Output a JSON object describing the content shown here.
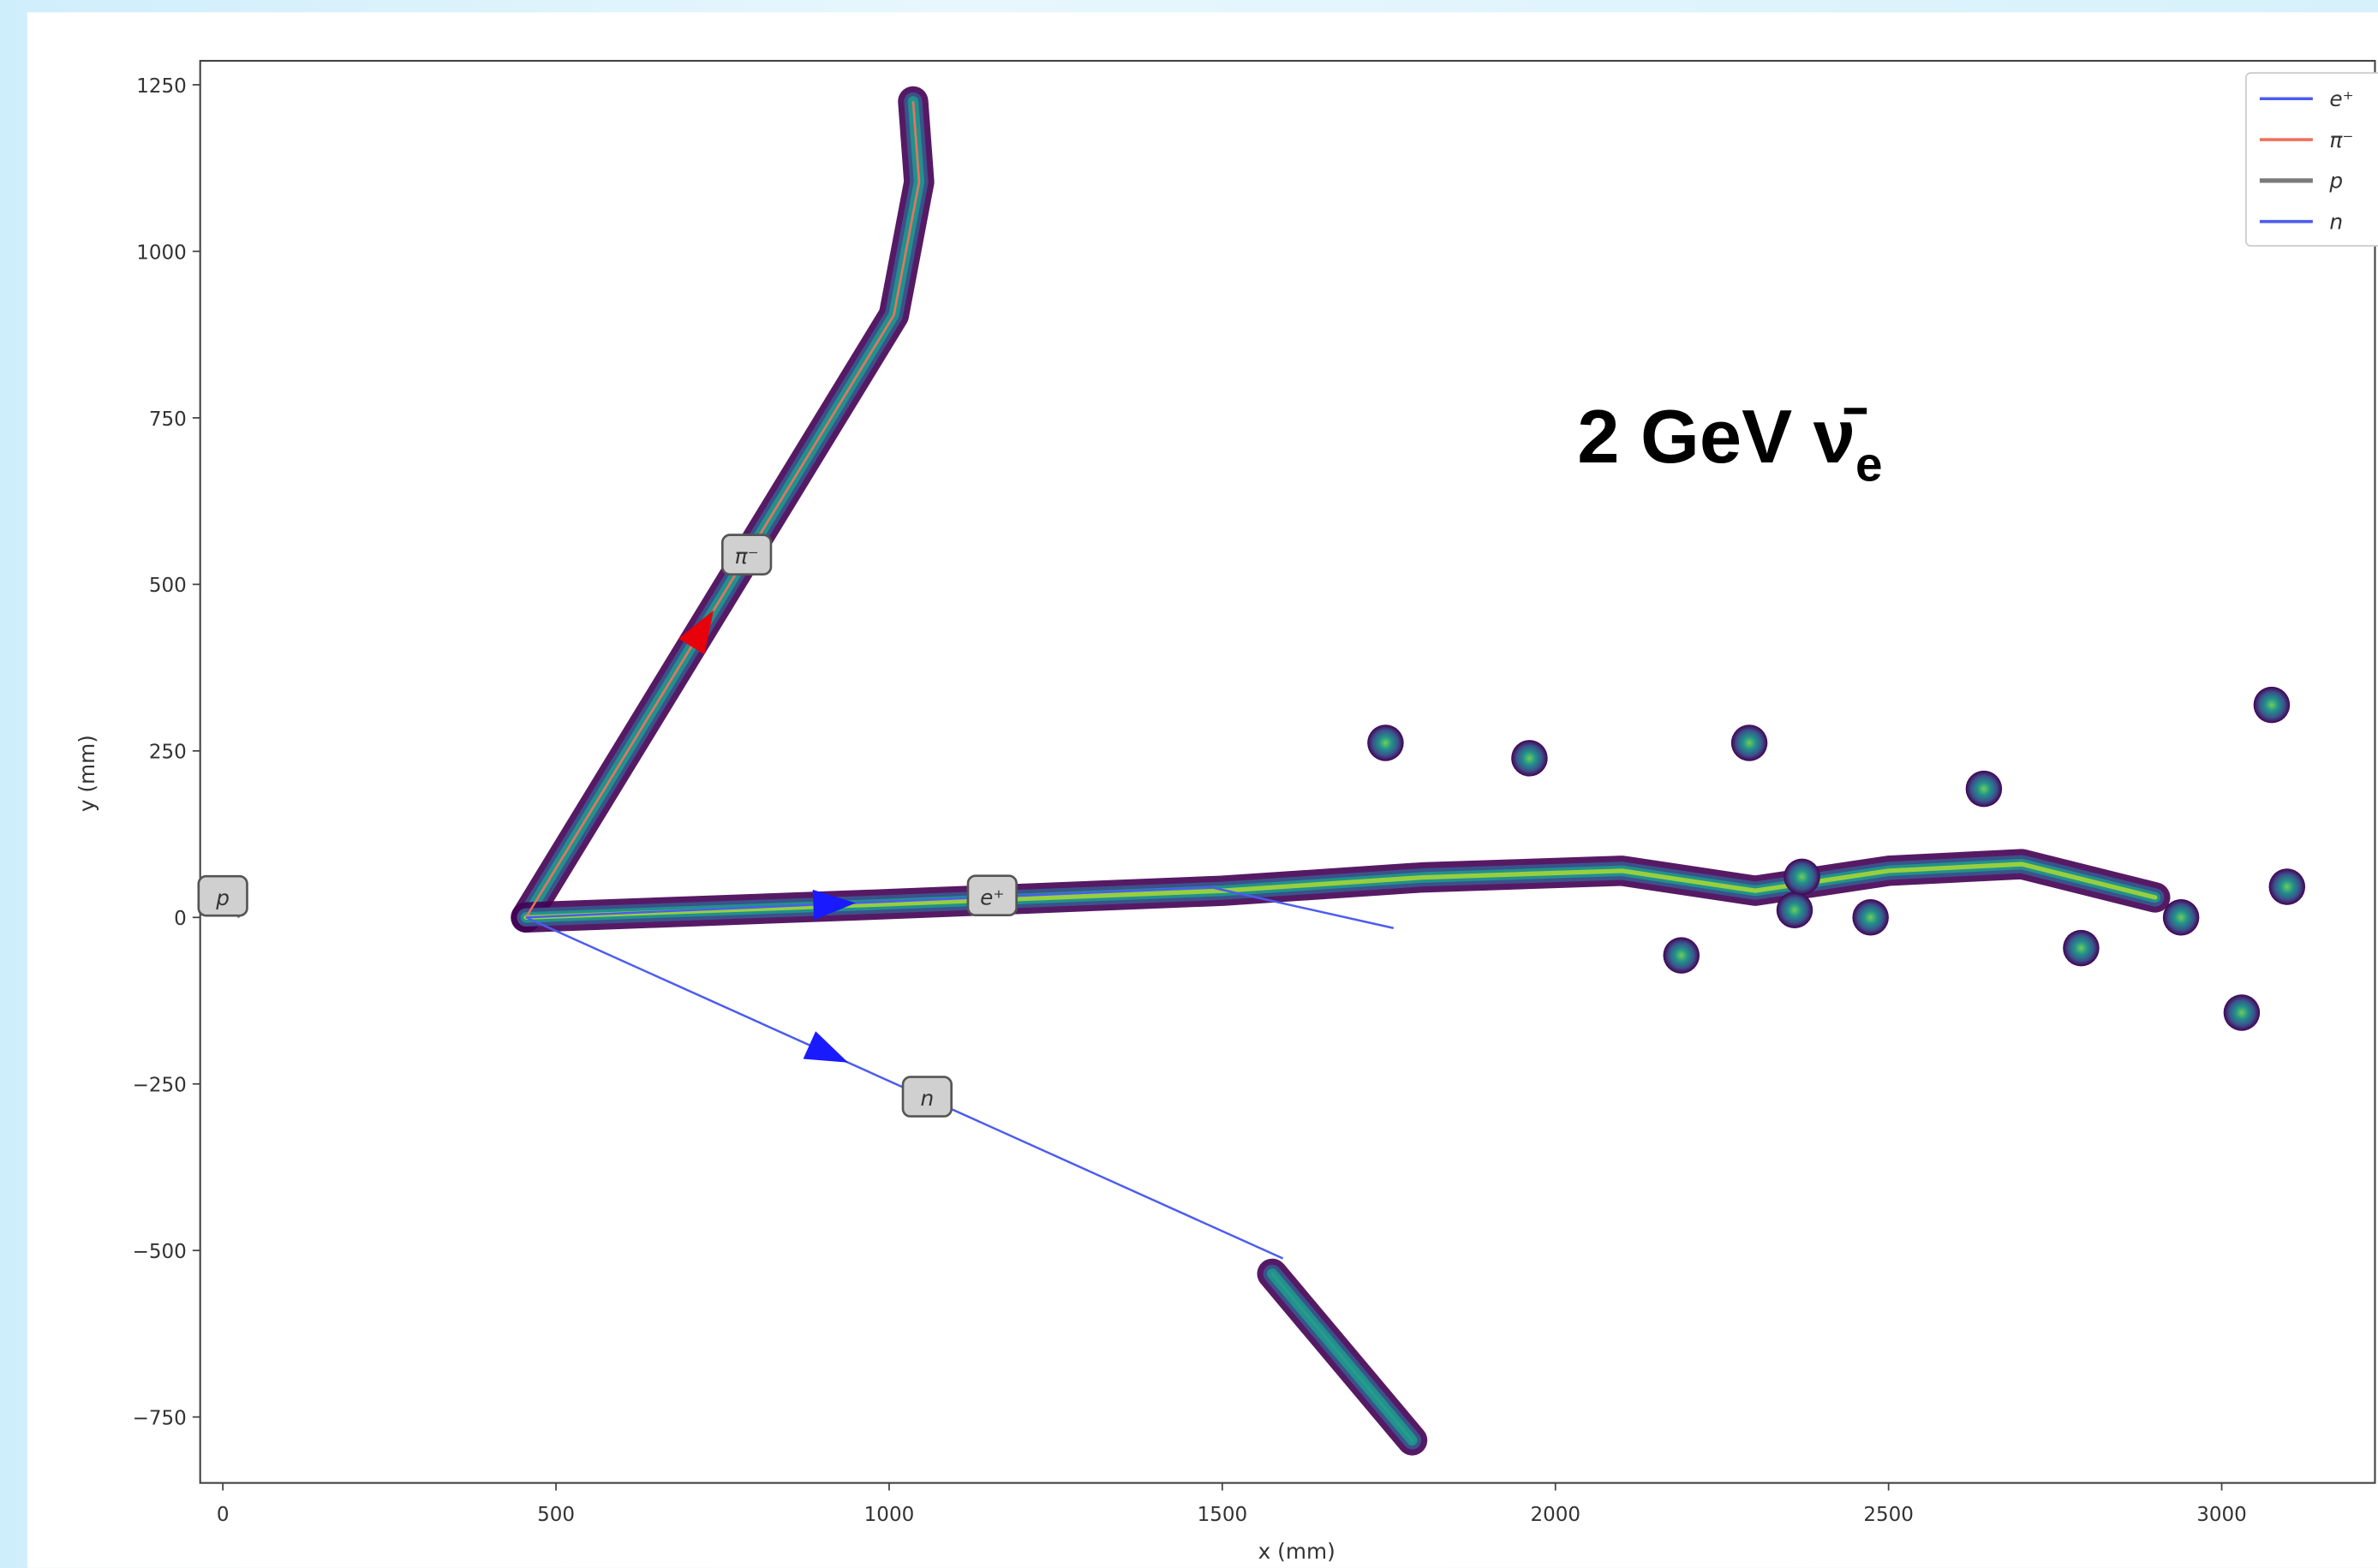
{
  "chart_data": {
    "type": "line",
    "title": "2 GeV ν̄",
    "title_subscript": "e",
    "xlabel": "x (mm)",
    "ylabel": "y (mm)",
    "xlim": [
      -34,
      3230
    ],
    "ylim": [
      -849,
      1286
    ],
    "xticks": [
      0,
      500,
      1000,
      1500,
      2000,
      2500,
      3000
    ],
    "yticks": [
      {
        "value": -750,
        "label": "−750"
      },
      {
        "value": -500,
        "label": "−500"
      },
      {
        "value": -250,
        "label": "−250"
      },
      0,
      250,
      500,
      750,
      1000,
      1250
    ],
    "legend": "upper right",
    "series": [
      {
        "name": "e⁺",
        "color": "#4b5cf0",
        "x": [
          455,
          1484,
          1757
        ],
        "values": [
          0,
          45,
          -16
        ]
      },
      {
        "name": "π⁻",
        "color": "#f0705a",
        "x": [
          455,
          1007,
          1045,
          1036
        ],
        "values": [
          0,
          904,
          1104,
          1225
        ]
      },
      {
        "name": "p",
        "color": "#7a7a7a",
        "x": [
          0,
          25
        ],
        "values": [
          30,
          0
        ]
      },
      {
        "name": "n",
        "color": "#4b5cf0",
        "x": [
          455,
          1591
        ],
        "values": [
          0,
          -512
        ]
      }
    ],
    "deposits": [
      {
        "x": [
          455,
          1007,
          1045,
          1036
        ],
        "values": [
          0,
          904,
          1104,
          1225
        ]
      },
      {
        "x": [
          455,
          1000,
          1500,
          1800,
          2100,
          2300,
          2500,
          2700,
          2900
        ],
        "values": [
          0,
          20,
          40,
          60,
          70,
          40,
          70,
          80,
          30
        ]
      },
      {
        "x": [
          1575,
          1785
        ],
        "values": [
          -535,
          -785
        ]
      }
    ],
    "blobs": {
      "x": [
        3075,
        2291,
        2643,
        2189,
        3030,
        2789,
        2939,
        2359,
        2370,
        1961,
        2473,
        1745,
        3098
      ],
      "values": [
        319,
        262,
        193,
        -57,
        -143,
        -46,
        0,
        11,
        61,
        239,
        0,
        262,
        46
      ]
    }
  }
}
